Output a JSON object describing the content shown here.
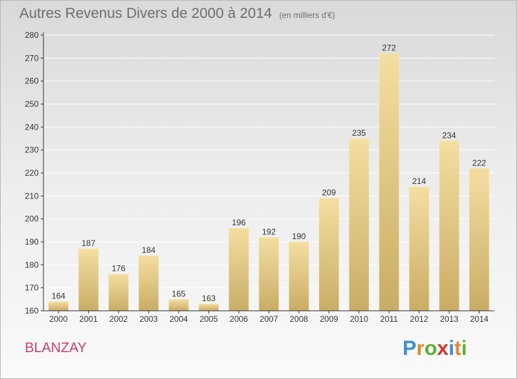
{
  "title": "Autres Revenus Divers de 2000 à 2014",
  "unit": "(en milliers d'€)",
  "commune": "BLANZAY",
  "logo": {
    "letters": [
      "P",
      "r",
      "o",
      "x",
      "i",
      "t",
      "i"
    ],
    "colors": [
      "#3a8fd4",
      "#e0892a",
      "#5bb134",
      "#d6332b",
      "#3a8fd4",
      "#e0892a",
      "#5bb134"
    ]
  },
  "colors": {
    "bar_top": "#f4dea0",
    "bar_bottom": "#c9ad66",
    "axis": "#333333",
    "grid": "#ffffff",
    "commune": "#c8406a"
  },
  "chart_data": {
    "type": "bar",
    "categories": [
      "2000",
      "2001",
      "2002",
      "2003",
      "2004",
      "2005",
      "2006",
      "2007",
      "2008",
      "2009",
      "2010",
      "2011",
      "2012",
      "2013",
      "2014"
    ],
    "values": [
      164,
      187,
      176,
      184,
      165,
      163,
      196,
      192,
      190,
      209,
      235,
      272,
      214,
      234,
      222
    ],
    "ylim": [
      160,
      280
    ],
    "yticks": [
      160,
      170,
      180,
      190,
      200,
      210,
      220,
      230,
      240,
      250,
      260,
      270,
      280
    ],
    "grid": true,
    "data_labels": true
  }
}
